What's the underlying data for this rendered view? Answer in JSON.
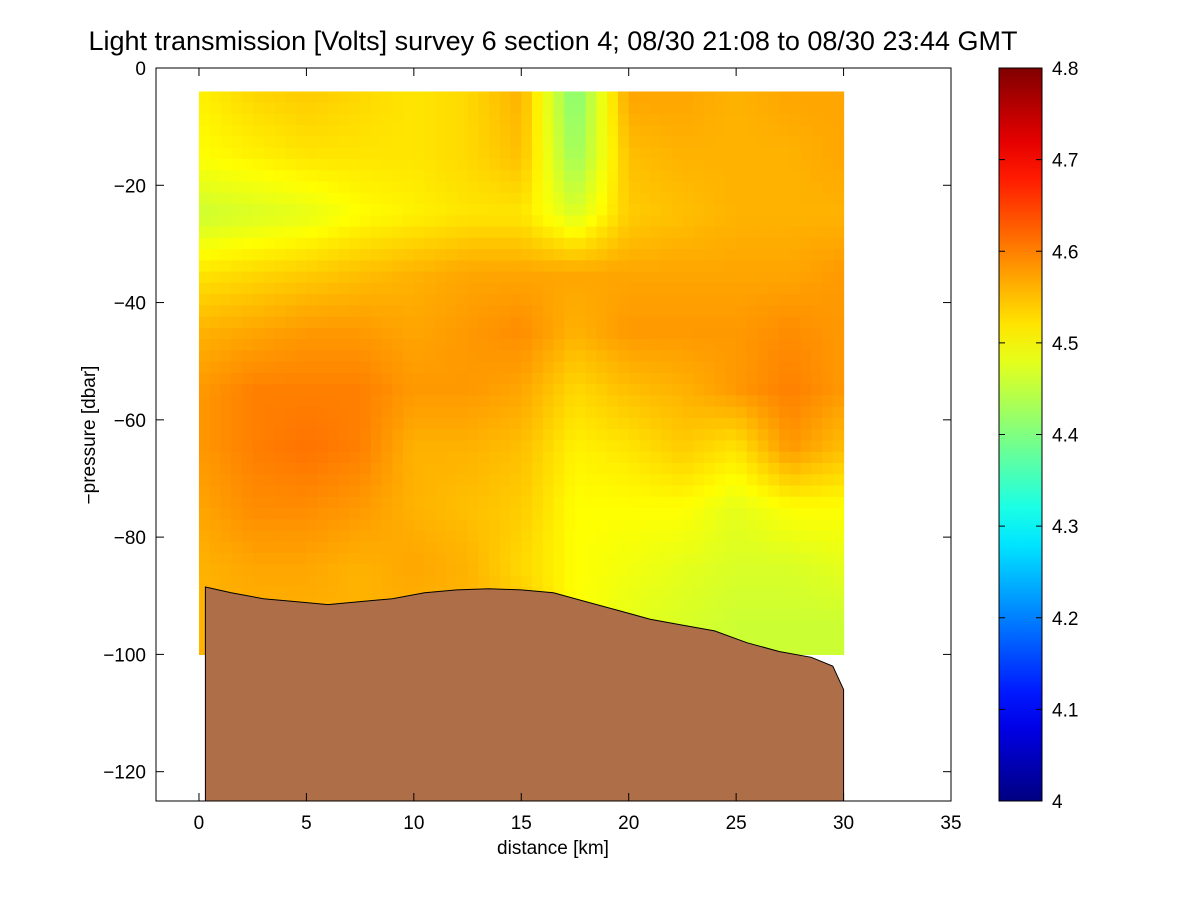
{
  "chart_data": {
    "type": "heatmap",
    "title": "Light transmission [Volts] survey 6 section 4; 08/30 21:08 to 08/30 23:44 GMT",
    "xlabel": "distance [km]",
    "ylabel": "−pressure [dbar]",
    "xlim": [
      -2,
      35
    ],
    "ylim": [
      -125,
      0
    ],
    "x_ticks": [
      0,
      5,
      10,
      15,
      20,
      25,
      30,
      35
    ],
    "x_tick_labels": [
      "0",
      "5",
      "10",
      "15",
      "20",
      "25",
      "30",
      "35"
    ],
    "y_ticks": [
      0,
      -20,
      -40,
      -60,
      -80,
      -100,
      -120
    ],
    "y_tick_labels": [
      "0",
      "−20",
      "−40",
      "−60",
      "−80",
      "−100",
      "−120"
    ],
    "grid": false,
    "colormap": "jet",
    "colorbar": {
      "min": 4.0,
      "max": 4.8,
      "ticks": [
        4,
        4.1,
        4.2,
        4.3,
        4.4,
        4.5,
        4.6,
        4.7,
        4.8
      ],
      "tick_labels": [
        "4",
        "4.1",
        "4.2",
        "4.3",
        "4.4",
        "4.5",
        "4.6",
        "4.7",
        "4.8"
      ],
      "placement": "right"
    },
    "distance_km": [
      0,
      2.5,
      5,
      7.5,
      10,
      12.5,
      15,
      17.5,
      20,
      22.5,
      25,
      27.5,
      30
    ],
    "pressure_dbar": [
      -5,
      -15,
      -25,
      -35,
      -45,
      -55,
      -65,
      -75,
      -85,
      -95
    ],
    "transmission_volts": [
      [
        4.51,
        4.53,
        4.54,
        4.53,
        4.52,
        4.53,
        4.56,
        4.4,
        4.57,
        4.57,
        4.56,
        4.57,
        4.57
      ],
      [
        4.5,
        4.51,
        4.52,
        4.52,
        4.52,
        4.53,
        4.55,
        4.42,
        4.55,
        4.56,
        4.56,
        4.56,
        4.57
      ],
      [
        4.46,
        4.47,
        4.48,
        4.5,
        4.51,
        4.52,
        4.52,
        4.47,
        4.54,
        4.55,
        4.56,
        4.56,
        4.56
      ],
      [
        4.52,
        4.53,
        4.54,
        4.55,
        4.56,
        4.57,
        4.57,
        4.57,
        4.57,
        4.57,
        4.57,
        4.57,
        4.58
      ],
      [
        4.56,
        4.57,
        4.58,
        4.58,
        4.57,
        4.58,
        4.59,
        4.56,
        4.58,
        4.58,
        4.58,
        4.59,
        4.58
      ],
      [
        4.58,
        4.6,
        4.6,
        4.6,
        4.58,
        4.58,
        4.57,
        4.53,
        4.55,
        4.56,
        4.58,
        4.6,
        4.58
      ],
      [
        4.58,
        4.6,
        4.61,
        4.6,
        4.56,
        4.56,
        4.55,
        4.51,
        4.52,
        4.54,
        4.52,
        4.58,
        4.55
      ],
      [
        4.57,
        4.59,
        4.59,
        4.58,
        4.56,
        4.55,
        4.54,
        4.5,
        4.5,
        4.5,
        4.48,
        4.5,
        4.5
      ],
      [
        4.56,
        4.57,
        4.57,
        4.56,
        4.57,
        4.56,
        4.53,
        4.5,
        4.49,
        4.48,
        4.47,
        4.47,
        4.48
      ],
      [
        4.56,
        4.56,
        4.56,
        4.56,
        4.56,
        4.56,
        4.55,
        4.5,
        4.48,
        4.47,
        4.46,
        4.46,
        4.46
      ]
    ],
    "bottom_depth": {
      "distance_km": [
        0.3,
        1.5,
        3,
        4.5,
        6,
        7.5,
        9,
        10.5,
        12,
        13.5,
        15,
        16.5,
        18,
        19.5,
        21,
        22.5,
        24,
        25.5,
        27,
        28.5,
        29.5,
        30
      ],
      "pressure_dbar": [
        -88.5,
        -89.5,
        -90.5,
        -91,
        -91.5,
        -91,
        -90.5,
        -89.5,
        -89,
        -88.8,
        -89,
        -89.5,
        -91,
        -92.5,
        -94,
        -95,
        -96,
        -98,
        -99.5,
        -100.5,
        -102,
        -106
      ],
      "color": "#ad6e48"
    }
  }
}
